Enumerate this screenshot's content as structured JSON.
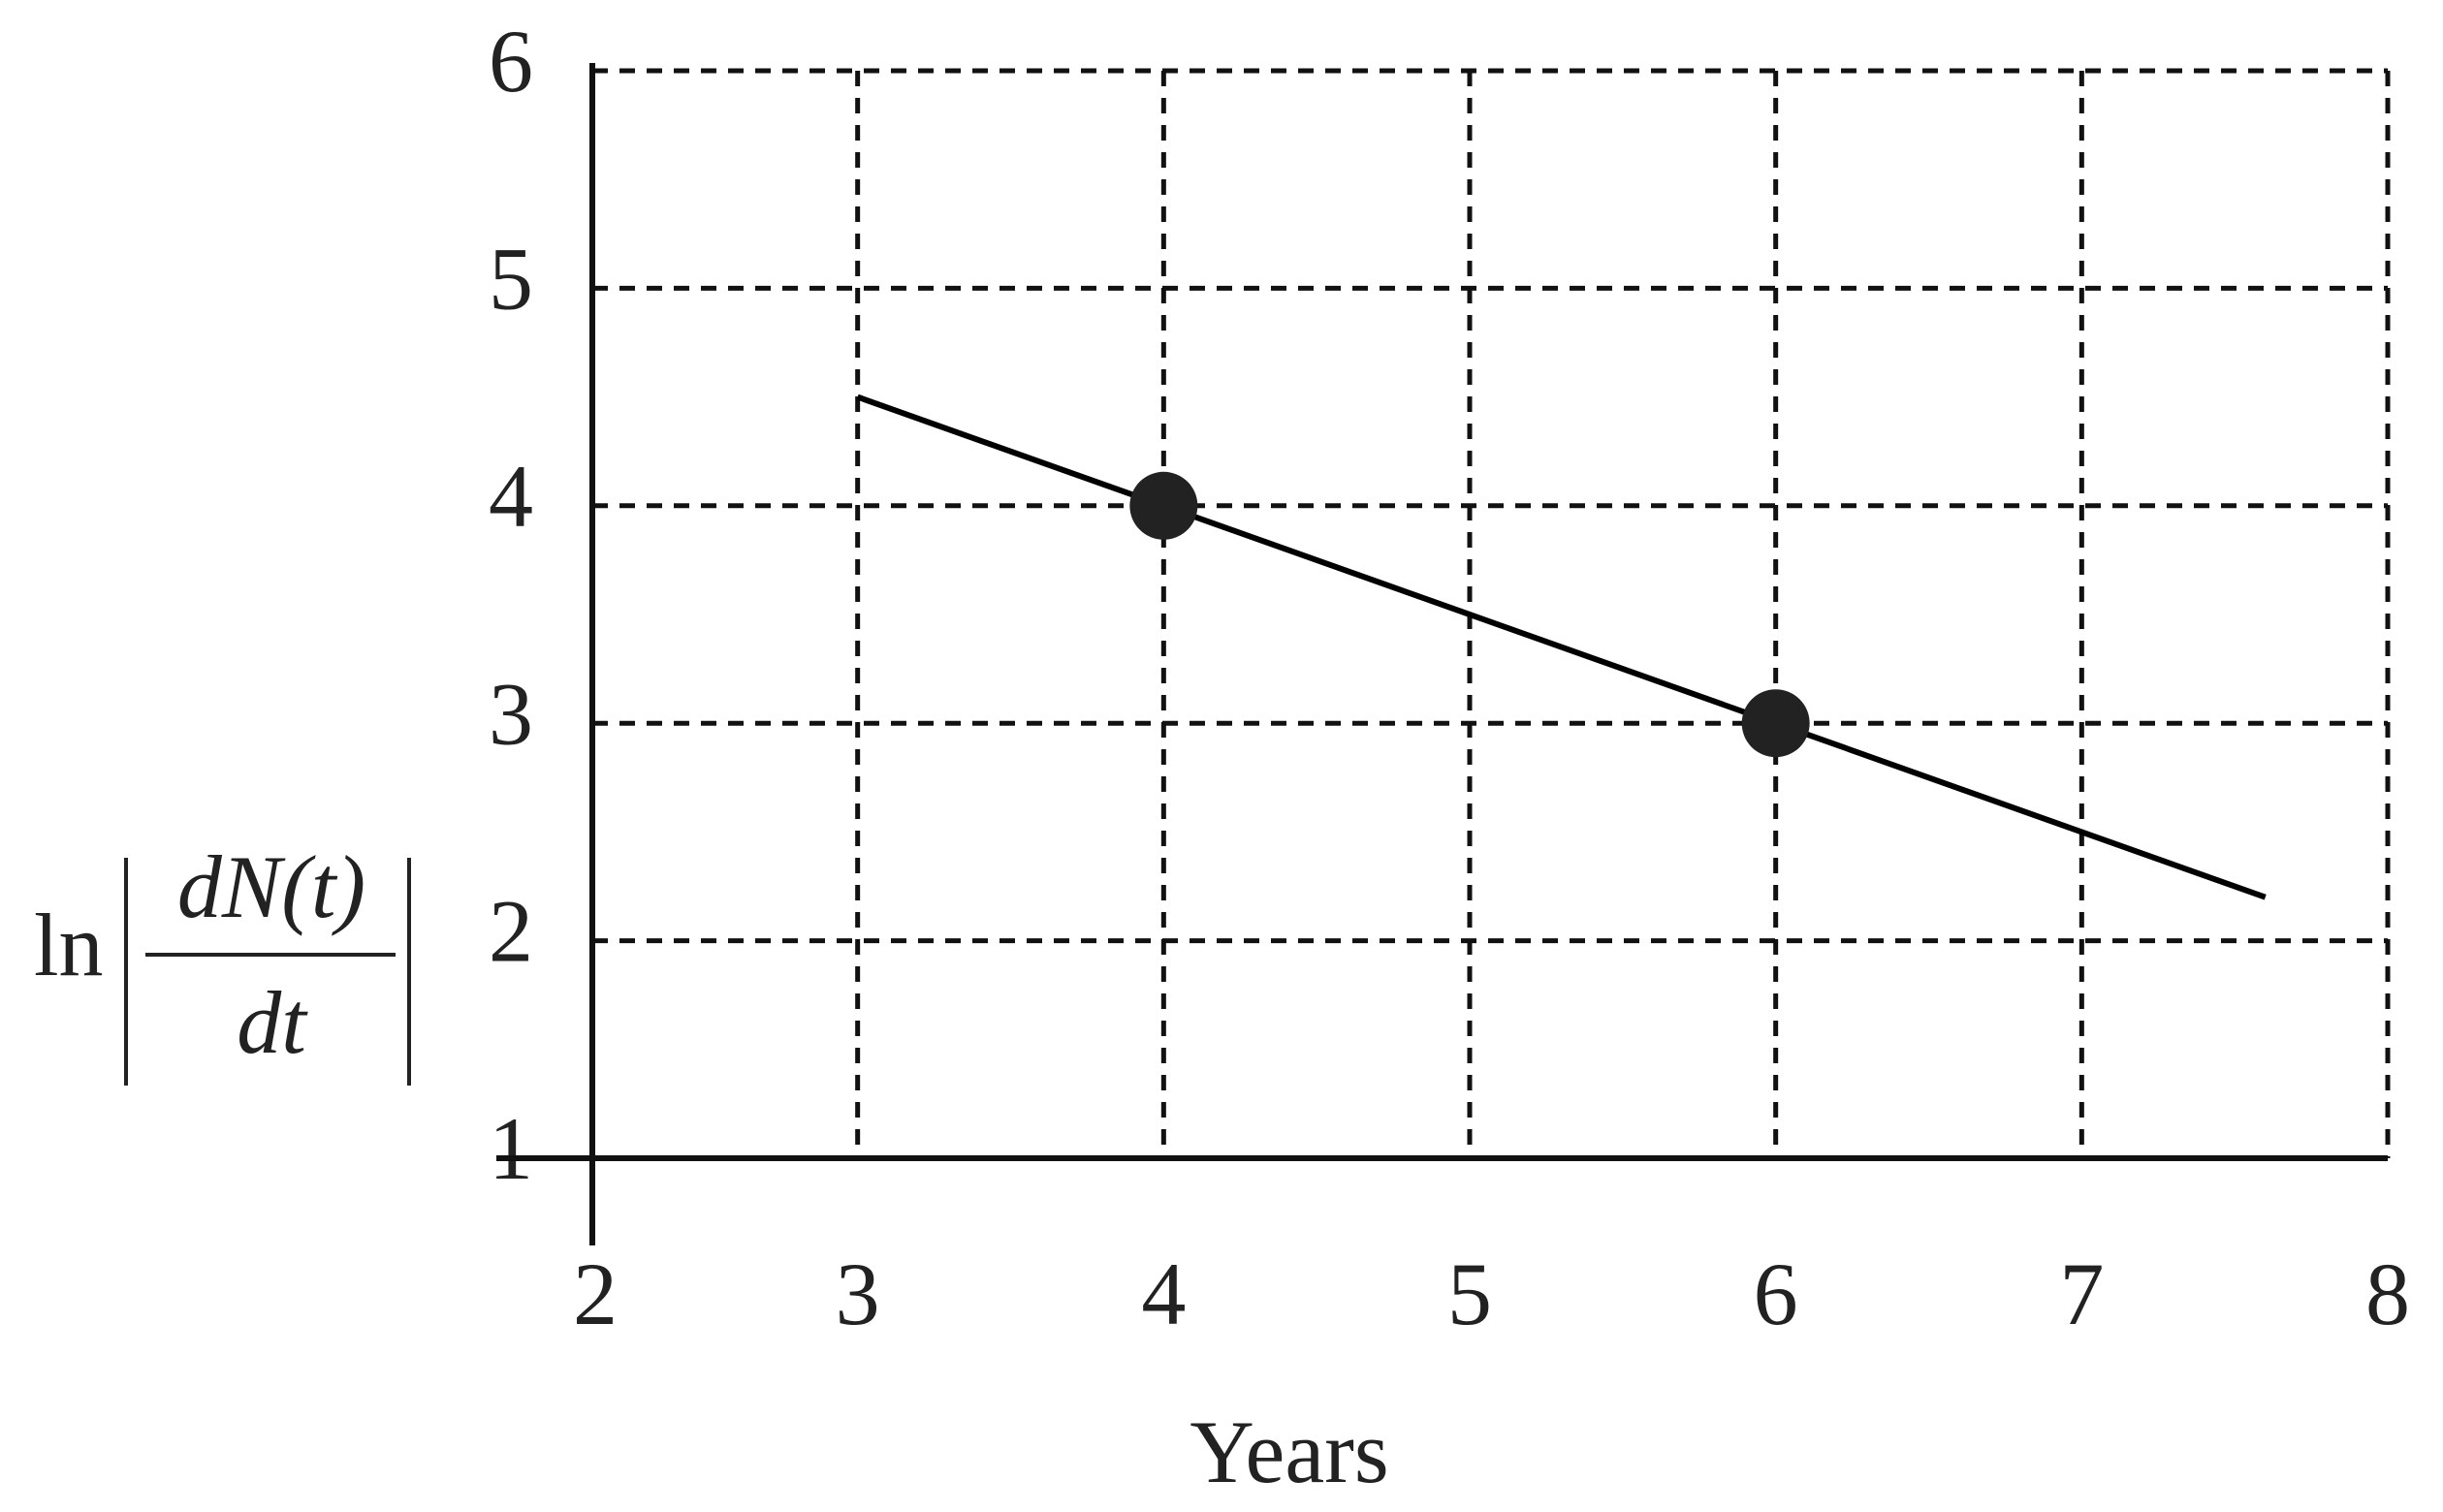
{
  "chart_data": {
    "type": "line",
    "x_label": "Years",
    "y_label": {
      "prefix": "ln",
      "numerator": "dN(t)",
      "denominator": "dt"
    },
    "line": {
      "color": "#000000",
      "x": [
        3,
        7.6
      ],
      "y": [
        4.5,
        2.2
      ]
    },
    "points": {
      "color": "#222222",
      "x": [
        4,
        6
      ],
      "y": [
        4,
        3
      ]
    },
    "xlim": [
      2,
      8
    ],
    "xticks": [
      2,
      3,
      4,
      5,
      6,
      7,
      8
    ],
    "ylim": [
      1,
      6
    ],
    "yticks": [
      1,
      2,
      3,
      4,
      5,
      6
    ],
    "grid": true
  }
}
